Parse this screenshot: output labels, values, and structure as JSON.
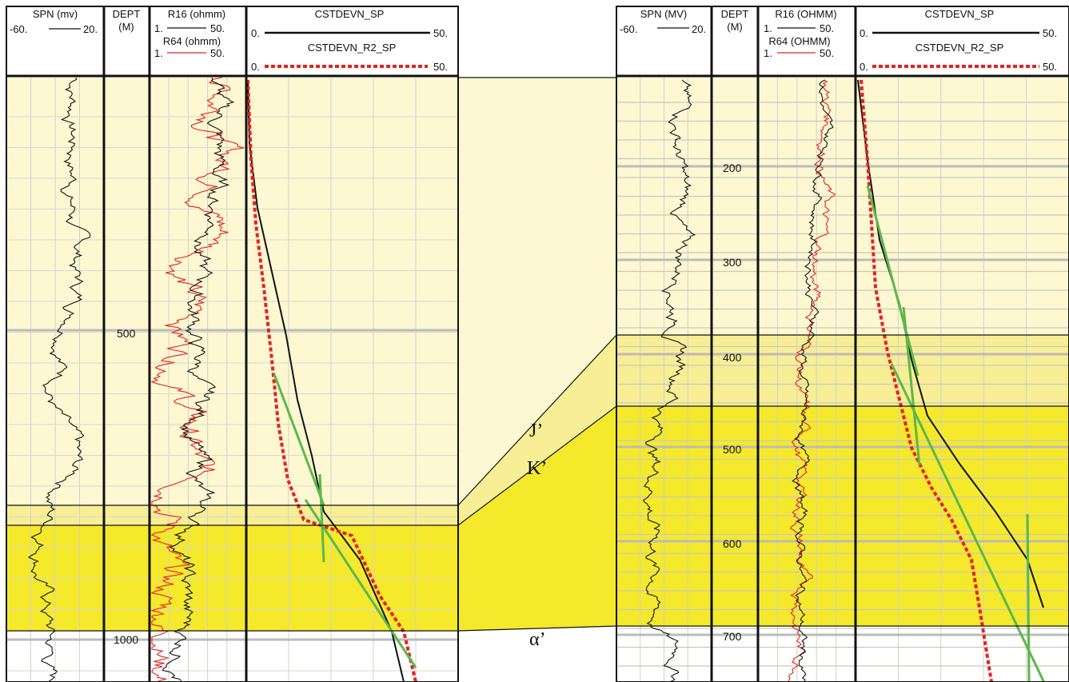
{
  "left_log": {
    "spn": {
      "title": "SPN (mv)",
      "min": "-60.",
      "max": "20."
    },
    "depth": {
      "title": "DEPT",
      "unit": "(M)",
      "labels": [
        "500",
        "1000"
      ]
    },
    "res": {
      "r16_title": "R16 (ohmm)",
      "r16_min": "1.",
      "r16_max": "50.",
      "r64_title": "R64 (ohmm)",
      "r64_min": "1.",
      "r64_max": "50."
    },
    "cstdevn": {
      "sp_title": "CSTDEVN_SP",
      "sp_min": "0.",
      "sp_max": "50.",
      "r2_title": "CSTDEVN_R2_SP",
      "r2_min": "0.",
      "r2_max": "50."
    }
  },
  "right_log": {
    "spn": {
      "title": "SPN (MV)",
      "min": "-60.",
      "max": "20."
    },
    "depth": {
      "title": "DEPT",
      "unit": "(M)",
      "labels": [
        "200",
        "300",
        "400",
        "500",
        "600",
        "700"
      ]
    },
    "res": {
      "r16_title": "R16 (OHMM)",
      "r16_min": "1.",
      "r16_max": "50.",
      "r64_title": "R64 (OHMM)",
      "r64_min": "1.",
      "r64_max": "50."
    },
    "cstdevn": {
      "sp_title": "CSTDEVN_SP",
      "sp_min": "0.",
      "sp_max": "50.",
      "r2_title": "CSTDEVN_R2_SP",
      "r2_min": "0.",
      "r2_max": "50."
    }
  },
  "zones": {
    "j": "J’",
    "k": "K’",
    "alpha": "α’"
  },
  "colors": {
    "pale_zone": "#fdf8d2",
    "light_zone": "#f7ee95",
    "strong_zone": "#f5e92c",
    "sp_curve": "#000000",
    "r2_curve": "#e52222",
    "fit_line": "#5cb84a",
    "depth_grid": "#bbbbbb"
  }
}
